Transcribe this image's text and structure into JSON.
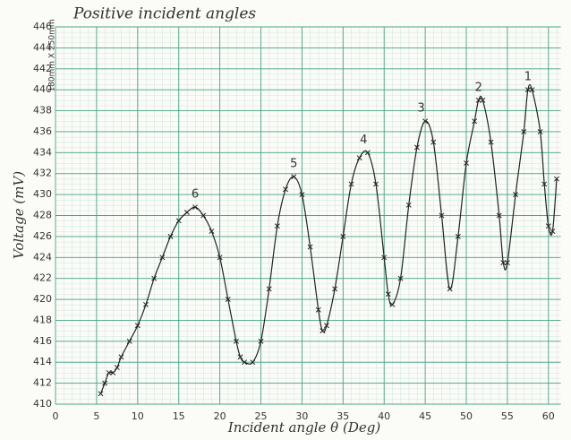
{
  "chart_data": {
    "type": "line",
    "title": "Positive incident angles",
    "xlabel": "Incident angle θ (Deg)",
    "ylabel": "Voltage (mV)",
    "side_note": "180mm X 250mm",
    "color": "#222222",
    "grid_color": "#4aa58a",
    "grid": true,
    "x": [
      5.5,
      6,
      6.5,
      7,
      7.5,
      8,
      9,
      10,
      11,
      12,
      13,
      14,
      15,
      16,
      17,
      18,
      19,
      20,
      21,
      22,
      22.5,
      23,
      24,
      25,
      26,
      27,
      28,
      29,
      30,
      31,
      32,
      32.5,
      33,
      34,
      35,
      36,
      37,
      38,
      39,
      40,
      40.5,
      41,
      42,
      43,
      44,
      45,
      46,
      47,
      48,
      49,
      50,
      51,
      51.5,
      52,
      53,
      54,
      54.5,
      55,
      56,
      57,
      57.5,
      58,
      59,
      59.5,
      60,
      60.5,
      61
    ],
    "values": [
      411,
      412,
      413,
      413,
      413.5,
      414.5,
      416,
      417.5,
      419.5,
      422,
      424,
      426,
      427.5,
      428.3,
      428.8,
      428,
      426.5,
      424,
      420,
      416,
      414.5,
      414,
      414,
      416,
      421,
      427,
      430.5,
      431.7,
      430,
      425,
      419,
      417,
      417.5,
      421,
      426,
      431,
      433.5,
      434,
      431,
      424,
      420.5,
      419.5,
      422,
      429,
      434.5,
      437,
      435,
      428,
      421,
      426,
      433,
      437,
      439,
      439,
      435,
      428,
      423.5,
      423.5,
      430,
      436,
      440,
      440,
      436,
      431,
      427,
      426.5,
      431.5
    ],
    "annotations": [
      {
        "text": "1",
        "x": 57.5,
        "y": 441.2
      },
      {
        "text": "2",
        "x": 51.5,
        "y": 440.2
      },
      {
        "text": "3",
        "x": 44.5,
        "y": 438.2
      },
      {
        "text": "4",
        "x": 37.5,
        "y": 435.2
      },
      {
        "text": "5",
        "x": 29,
        "y": 432.9
      },
      {
        "text": "6",
        "x": 17,
        "y": 430
      }
    ],
    "xlim": [
      0,
      61.5
    ],
    "ylim": [
      410,
      446
    ],
    "xticks": [
      0,
      5,
      10,
      15,
      20,
      25,
      30,
      35,
      40,
      45,
      50,
      55,
      60
    ],
    "yticks": [
      410,
      412,
      414,
      416,
      418,
      420,
      422,
      424,
      426,
      428,
      430,
      432,
      434,
      436,
      438,
      440,
      442,
      444,
      446
    ]
  }
}
